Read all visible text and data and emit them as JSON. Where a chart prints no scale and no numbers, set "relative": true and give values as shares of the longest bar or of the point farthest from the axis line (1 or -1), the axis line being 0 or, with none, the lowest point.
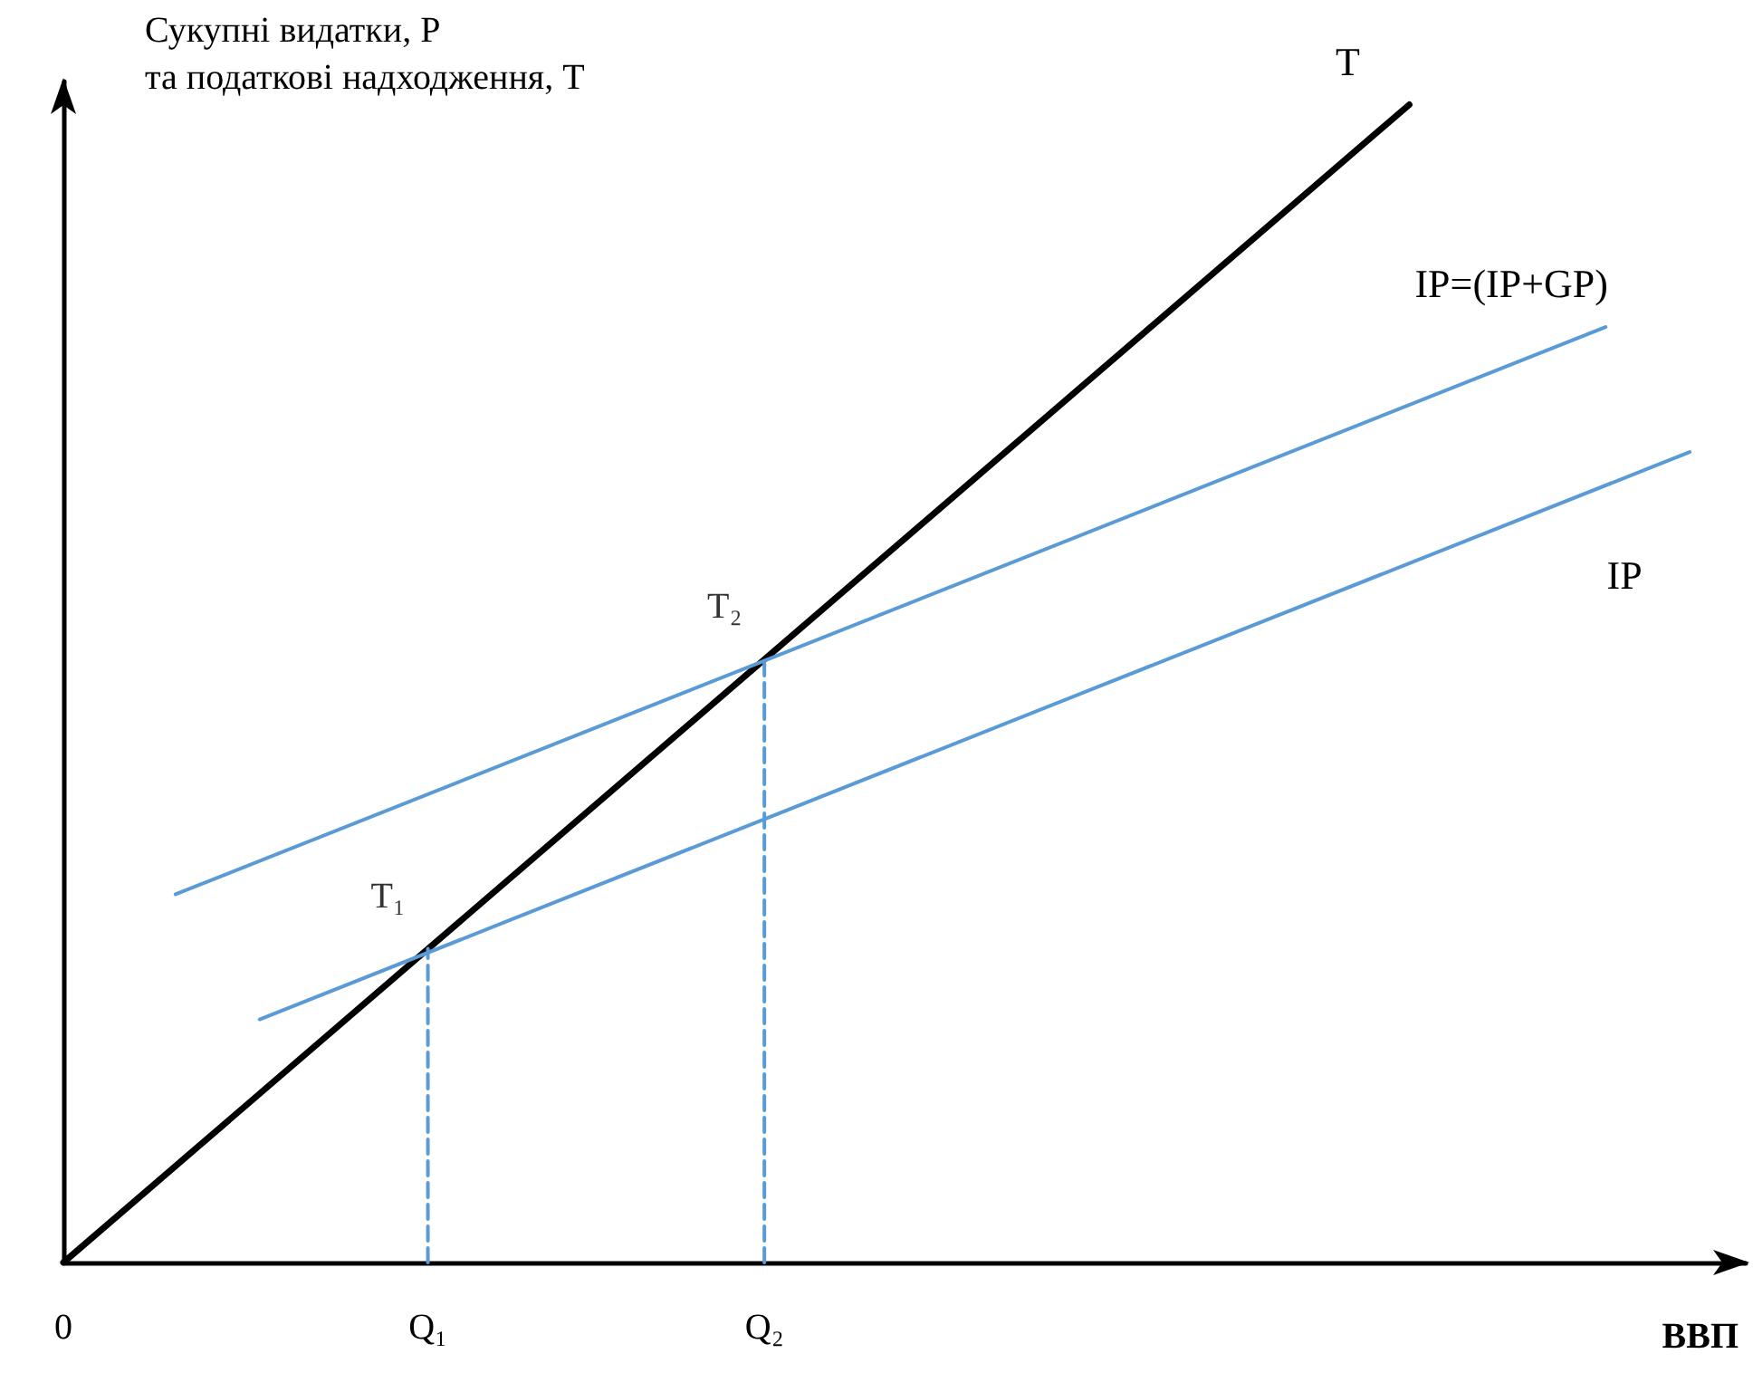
{
  "chart_data": {
    "type": "line",
    "relative": true,
    "ylabel": "Сукупні видатки, Р\nта податкові надходження, Т",
    "xlabel": "ВВП",
    "categories": [
      "0",
      null,
      null,
      null,
      null,
      null,
      null,
      null,
      null,
      null,
      null,
      null,
      null,
      "Q₁",
      null,
      null,
      null,
      null,
      null,
      null,
      null,
      null,
      null,
      null,
      null,
      "Q₂",
      null,
      null,
      null,
      null,
      null,
      null,
      null,
      null,
      null,
      null,
      null,
      null,
      null,
      null,
      null,
      null,
      null,
      null,
      null,
      null,
      null,
      null,
      null,
      null,
      null,
      null,
      null,
      null,
      null,
      null,
      null,
      null,
      null,
      null,
      null
    ],
    "grid": false,
    "marker": "none",
    "series": [
      {
        "name": "T",
        "color": "#000000",
        "values": [
          0,
          null,
          null,
          null,
          null,
          null,
          null,
          null,
          null,
          null,
          null,
          null,
          null,
          null,
          null,
          null,
          null,
          null,
          null,
          null,
          null,
          null,
          null,
          null,
          null,
          null,
          null,
          null,
          null,
          null,
          null,
          null,
          null,
          null,
          null,
          null,
          null,
          null,
          null,
          null,
          null,
          null,
          null,
          null,
          null,
          null,
          null,
          null,
          1,
          null,
          null,
          null,
          null,
          null,
          null,
          null,
          null,
          null,
          null,
          null,
          null
        ]
      },
      {
        "name": "IP=(IP+GP)",
        "color": "#5b9bd5",
        "values": [
          null,
          null,
          null,
          null,
          0.318,
          null,
          null,
          null,
          null,
          null,
          null,
          null,
          null,
          null,
          null,
          null,
          null,
          null,
          null,
          null,
          null,
          null,
          null,
          null,
          null,
          null,
          null,
          null,
          null,
          null,
          null,
          null,
          null,
          null,
          null,
          null,
          null,
          null,
          null,
          null,
          null,
          null,
          null,
          null,
          null,
          null,
          null,
          null,
          null,
          null,
          null,
          null,
          null,
          null,
          null,
          0.808,
          null,
          null,
          null,
          null,
          null
        ]
      },
      {
        "name": "IP",
        "color": "#5b9bd5",
        "values": [
          null,
          null,
          null,
          null,
          null,
          null,
          null,
          0.21,
          null,
          null,
          null,
          null,
          null,
          null,
          null,
          null,
          null,
          null,
          null,
          null,
          null,
          null,
          null,
          null,
          null,
          null,
          null,
          null,
          null,
          null,
          null,
          null,
          null,
          null,
          null,
          null,
          null,
          null,
          null,
          null,
          null,
          null,
          null,
          null,
          null,
          null,
          null,
          null,
          null,
          null,
          null,
          null,
          null,
          null,
          null,
          null,
          null,
          null,
          0.7,
          null,
          null
        ]
      },
      {
        "color": "#5b9bd5",
        "line_style": "dashed",
        "x": [
          "Q₁",
          "Q₁"
        ],
        "values": [
          0,
          0.271
        ]
      },
      {
        "color": "#5b9bd5",
        "line_style": "dashed",
        "x": [
          "Q₂",
          "Q₂"
        ],
        "values": [
          0,
          0.521
        ]
      }
    ],
    "annotations": [
      {
        "text": "T₁",
        "x": "Q₁",
        "y": 0.271
      },
      {
        "text": "T₂",
        "x": "Q₂",
        "y": 0.521
      }
    ]
  }
}
